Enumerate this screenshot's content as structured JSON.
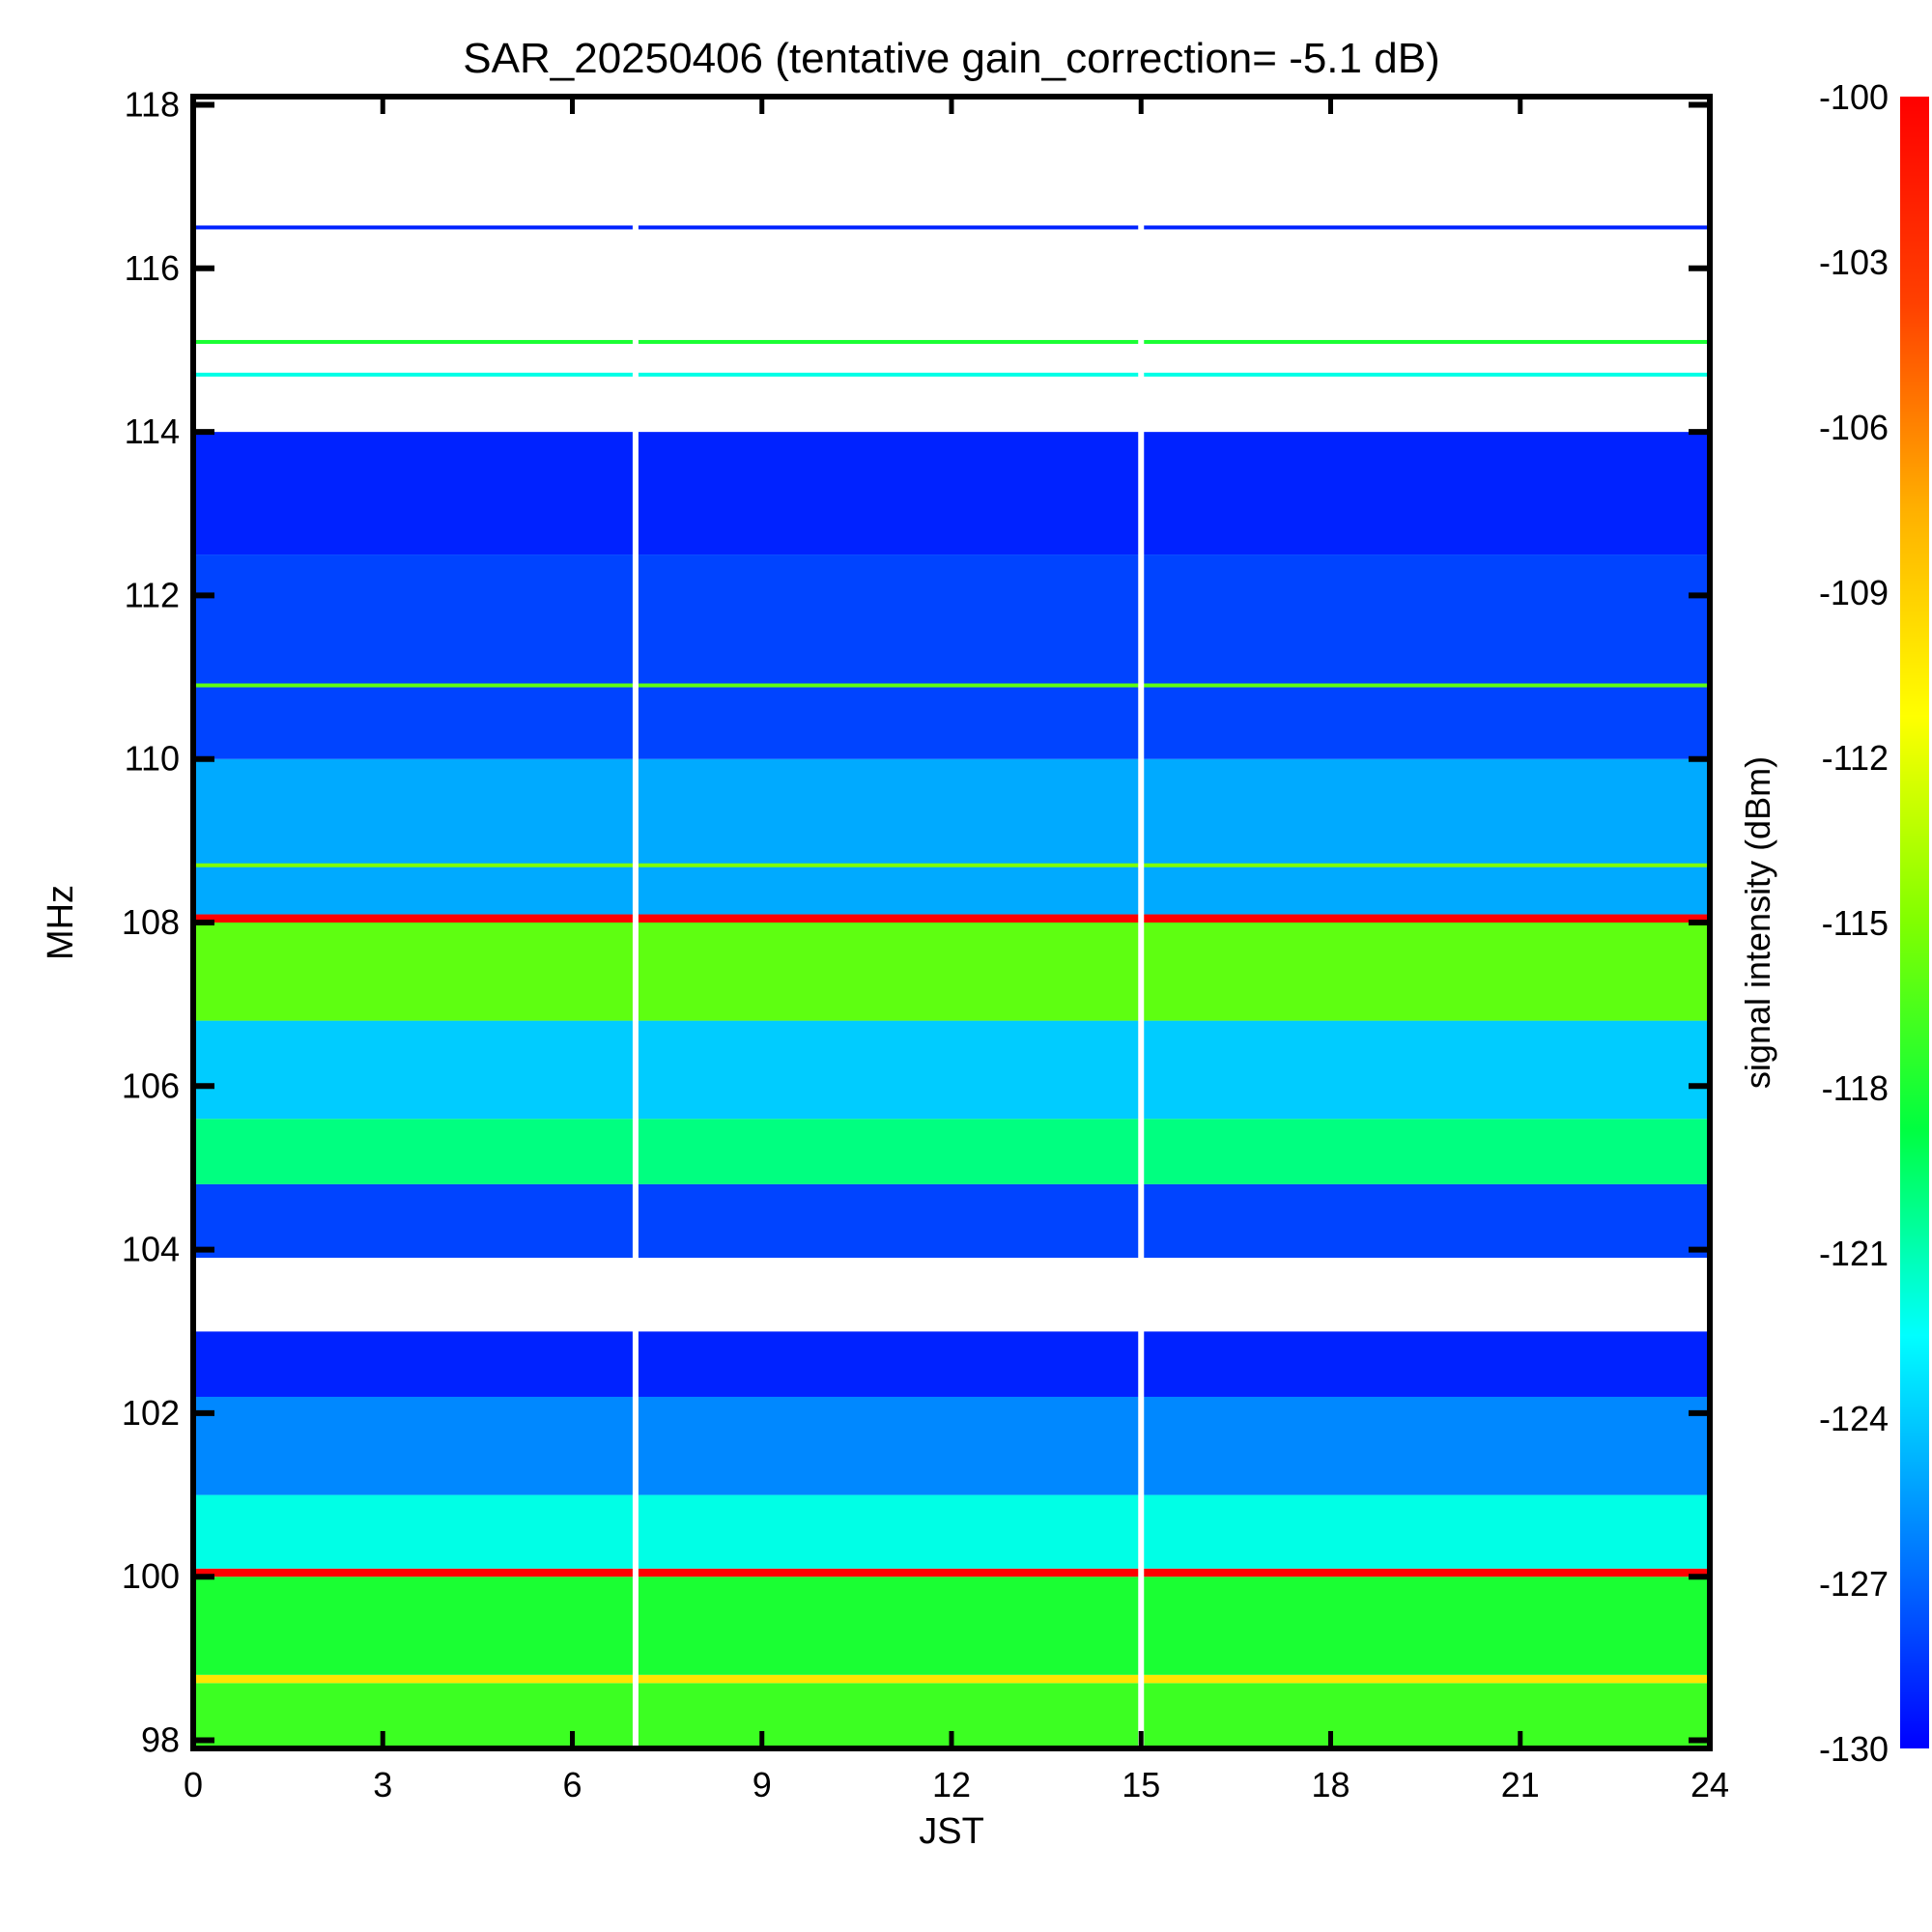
{
  "chart_data": {
    "type": "heatmap",
    "title": "SAR_20250406 (tentative gain_correction= -5.1 dB)",
    "xlabel": "JST",
    "ylabel": "MHz",
    "colorbar_label": "signal intensity (dBm)",
    "xlim": [
      0,
      24
    ],
    "ylim": [
      97.9,
      118.1
    ],
    "xticks": [
      0,
      3,
      6,
      9,
      12,
      15,
      18,
      21,
      24
    ],
    "yticks": [
      98,
      100,
      102,
      104,
      106,
      108,
      110,
      112,
      114,
      116,
      118
    ],
    "color_range": [
      -130,
      -100
    ],
    "colorbar_ticks": [
      -100,
      -103,
      -106,
      -109,
      -112,
      -115,
      -118,
      -121,
      -124,
      -127,
      -130
    ],
    "colormap": [
      "#0000ff",
      "#0080ff",
      "#00ffff",
      "#00ff40",
      "#80ff00",
      "#ffff00",
      "#ffb000",
      "#ff4000",
      "#ff0000"
    ],
    "data_gaps_jst": [
      7.0,
      15.0
    ],
    "bands": [
      {
        "freq_range": [
          97.9,
          98.7
        ],
        "level_dbm": -117
      },
      {
        "freq_range": [
          98.7,
          98.8
        ],
        "level_dbm": -110
      },
      {
        "freq_range": [
          98.8,
          100.0
        ],
        "level_dbm": -118
      },
      {
        "freq_range": [
          100.0,
          100.1
        ],
        "level_dbm": -100
      },
      {
        "freq_range": [
          100.1,
          101.0
        ],
        "level_dbm": -122
      },
      {
        "freq_range": [
          101.0,
          102.2
        ],
        "level_dbm": -126
      },
      {
        "freq_range": [
          102.2,
          103.0
        ],
        "level_dbm": -129
      },
      {
        "freq_range": [
          103.0,
          103.9
        ],
        "level_dbm": -131
      },
      {
        "freq_range": [
          103.9,
          104.8
        ],
        "level_dbm": -128
      },
      {
        "freq_range": [
          104.8,
          105.6
        ],
        "level_dbm": -120
      },
      {
        "freq_range": [
          105.6,
          106.8
        ],
        "level_dbm": -124
      },
      {
        "freq_range": [
          106.8,
          108.0
        ],
        "level_dbm": -116
      },
      {
        "freq_range": [
          108.0,
          108.1
        ],
        "level_dbm": -100
      },
      {
        "freq_range": [
          108.1,
          110.0
        ],
        "level_dbm": -125
      },
      {
        "freq_range": [
          110.0,
          112.5
        ],
        "level_dbm": -128
      },
      {
        "freq_range": [
          112.5,
          114.0
        ],
        "level_dbm": -129
      },
      {
        "freq_range": [
          114.0,
          118.1
        ],
        "level_dbm": -131
      }
    ],
    "narrow_lines": [
      {
        "freq": 108.7,
        "level_dbm": -115
      },
      {
        "freq": 110.9,
        "level_dbm": -116
      },
      {
        "freq": 114.7,
        "level_dbm": -122
      },
      {
        "freq": 115.1,
        "level_dbm": -118
      },
      {
        "freq": 116.5,
        "level_dbm": -129
      }
    ]
  }
}
